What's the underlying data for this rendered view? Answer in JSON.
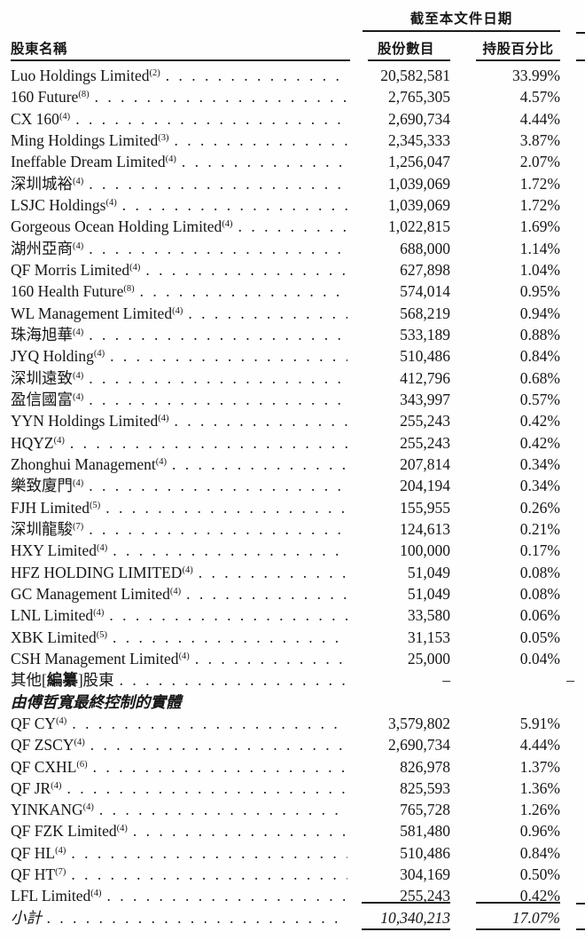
{
  "table": {
    "date_header": "截至本文件日期",
    "columns": {
      "name": "股東名稱",
      "shares": "股份數目",
      "pct": "持股百分比"
    },
    "rows": [
      {
        "name": "Luo Holdings Limited",
        "sup": "(2)",
        "shares": "20,582,581",
        "pct": "33.99%"
      },
      {
        "name": "160 Future",
        "sup": "(8)",
        "shares": "2,765,305",
        "pct": "4.57%"
      },
      {
        "name": "CX 160",
        "sup": "(4)",
        "shares": "2,690,734",
        "pct": "4.44%"
      },
      {
        "name": "Ming Holdings Limited",
        "sup": "(3)",
        "shares": "2,345,333",
        "pct": "3.87%"
      },
      {
        "name": "Ineffable Dream Limited",
        "sup": "(4)",
        "shares": "1,256,047",
        "pct": "2.07%"
      },
      {
        "name": "深圳城裕",
        "sup": "(4)",
        "shares": "1,039,069",
        "pct": "1.72%"
      },
      {
        "name": "LSJC Holdings",
        "sup": "(4)",
        "shares": "1,039,069",
        "pct": "1.72%"
      },
      {
        "name": "Gorgeous Ocean Holding Limited",
        "sup": "(4)",
        "shares": "1,022,815",
        "pct": "1.69%"
      },
      {
        "name": "湖州亞商",
        "sup": "(4)",
        "shares": "688,000",
        "pct": "1.14%"
      },
      {
        "name": "QF Morris Limited",
        "sup": "(4)",
        "shares": "627,898",
        "pct": "1.04%"
      },
      {
        "name": "160 Health Future",
        "sup": "(8)",
        "shares": "574,014",
        "pct": "0.95%"
      },
      {
        "name": "WL Management Limited",
        "sup": "(4)",
        "shares": "568,219",
        "pct": "0.94%"
      },
      {
        "name": "珠海旭華",
        "sup": "(4)",
        "shares": "533,189",
        "pct": "0.88%"
      },
      {
        "name": "JYQ Holding",
        "sup": "(4)",
        "shares": "510,486",
        "pct": "0.84%"
      },
      {
        "name": "深圳遠致",
        "sup": "(4)",
        "shares": "412,796",
        "pct": "0.68%"
      },
      {
        "name": "盈信國富",
        "sup": "(4)",
        "shares": "343,997",
        "pct": "0.57%"
      },
      {
        "name": "YYN Holdings Limited",
        "sup": "(4)",
        "shares": "255,243",
        "pct": "0.42%"
      },
      {
        "name": "HQYZ",
        "sup": "(4)",
        "shares": "255,243",
        "pct": "0.42%"
      },
      {
        "name": "Zhonghui Management",
        "sup": "(4)",
        "shares": "207,814",
        "pct": "0.34%"
      },
      {
        "name": "樂致廈門",
        "sup": "(4)",
        "shares": "204,194",
        "pct": "0.34%"
      },
      {
        "name": "FJH Limited",
        "sup": "(5)",
        "shares": "155,955",
        "pct": "0.26%"
      },
      {
        "name": "深圳龍駿",
        "sup": "(7)",
        "shares": "124,613",
        "pct": "0.21%"
      },
      {
        "name": "HXY Limited",
        "sup": "(4)",
        "shares": "100,000",
        "pct": "0.17%"
      },
      {
        "name": "HFZ HOLDING LIMITED",
        "sup": "(4)",
        "shares": "51,049",
        "pct": "0.08%"
      },
      {
        "name": "GC Management Limited",
        "sup": "(4)",
        "shares": "51,049",
        "pct": "0.08%"
      },
      {
        "name": "LNL Limited",
        "sup": "(4)",
        "shares": "33,580",
        "pct": "0.06%"
      },
      {
        "name": "XBK Limited",
        "sup": "(5)",
        "shares": "31,153",
        "pct": "0.05%"
      },
      {
        "name": "CSH Management Limited",
        "sup": "(4)",
        "shares": "25,000",
        "pct": "0.04%"
      },
      {
        "type": "other",
        "name_pre": "其他[",
        "name_bold": "編纂",
        "name_post": "]股東",
        "shares": "–",
        "pct": "–"
      },
      {
        "type": "section",
        "name": "由傅哲寬最終控制的實體"
      },
      {
        "name": "QF CY",
        "sup": "(4)",
        "shares": "3,579,802",
        "pct": "5.91%"
      },
      {
        "name": "QF ZSCY",
        "sup": "(4)",
        "shares": "2,690,734",
        "pct": "4.44%"
      },
      {
        "name": "QF CXHL",
        "sup": "(6)",
        "shares": "826,978",
        "pct": "1.37%"
      },
      {
        "name": "QF JR",
        "sup": "(4)",
        "shares": "825,593",
        "pct": "1.36%"
      },
      {
        "name": "YINKANG",
        "sup": "(4)",
        "shares": "765,728",
        "pct": "1.26%"
      },
      {
        "name": "QF FZK Limited",
        "sup": "(4)",
        "shares": "581,480",
        "pct": "0.96%"
      },
      {
        "name": "QF HL",
        "sup": "(4)",
        "shares": "510,486",
        "pct": "0.84%"
      },
      {
        "name": "QF HT",
        "sup": "(7)",
        "shares": "304,169",
        "pct": "0.50%"
      },
      {
        "name": "LFL Limited",
        "sup": "(4)",
        "shares": "255,243",
        "pct": "0.42%"
      },
      {
        "type": "subtotal",
        "name": "小計",
        "shares": "10,340,213",
        "pct": "17.07%"
      }
    ]
  }
}
